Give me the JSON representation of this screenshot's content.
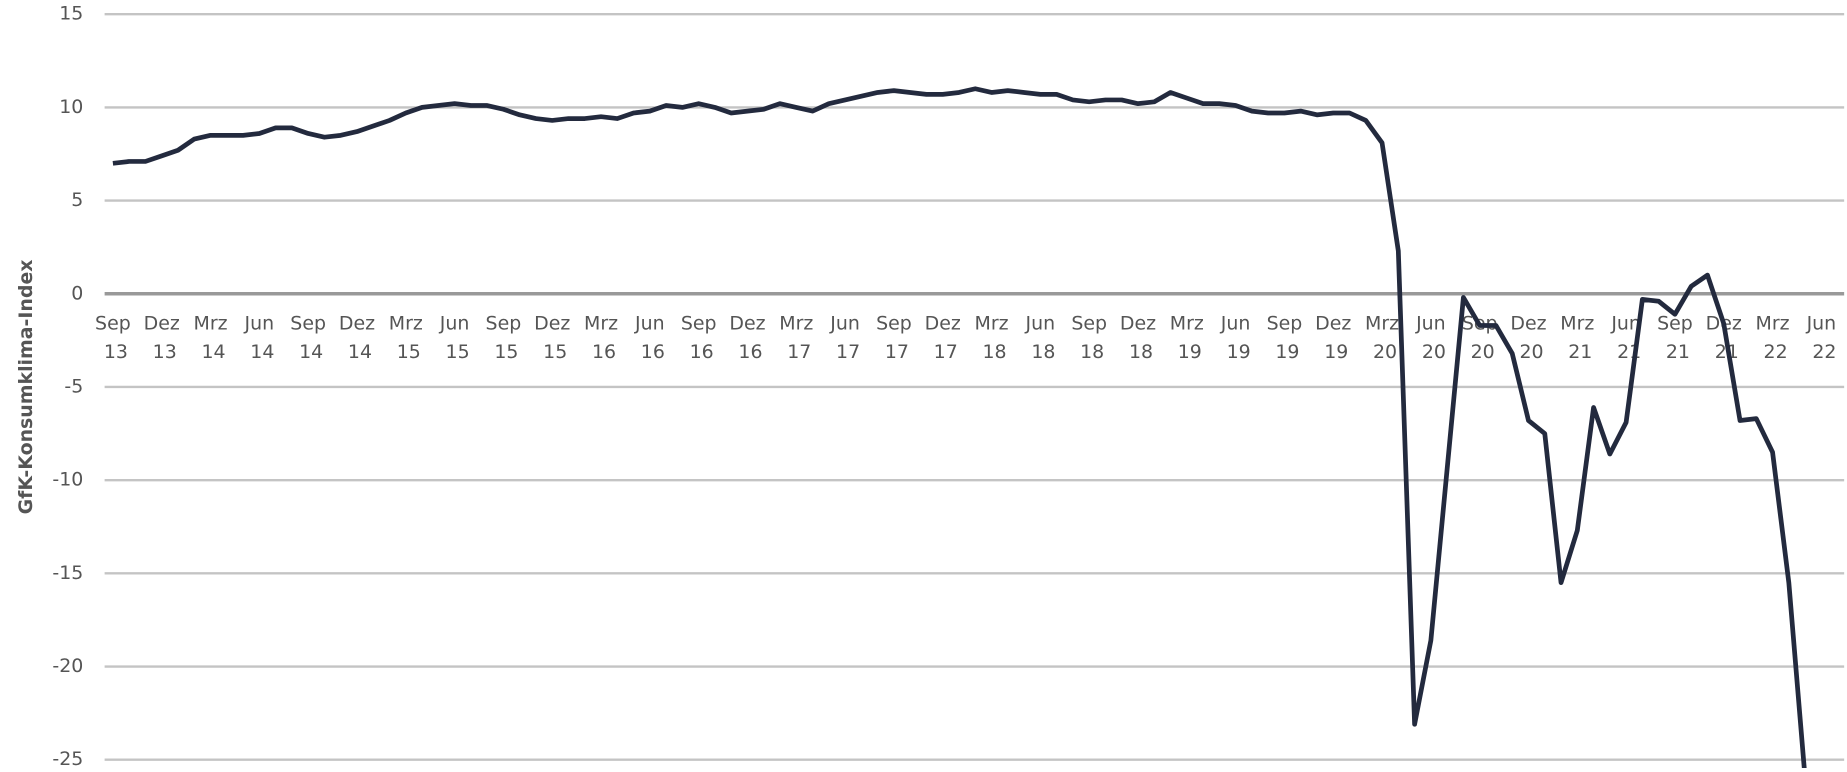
{
  "chart_data": {
    "type": "line",
    "y_label": "GfK-Konsumklima-Index",
    "categories": [
      "Sep 13",
      null,
      null,
      "Dez 13",
      null,
      null,
      "Mrz 14",
      null,
      null,
      "Jun 14",
      null,
      null,
      "Sep 14",
      null,
      null,
      "Dez 14",
      null,
      null,
      "Mrz 15",
      null,
      null,
      "Jun 15",
      null,
      null,
      "Sep 15",
      null,
      null,
      "Dez 15",
      null,
      null,
      "Mrz 16",
      null,
      null,
      "Jun 16",
      null,
      null,
      "Sep 16",
      null,
      null,
      "Dez 16",
      null,
      null,
      "Mrz 17",
      null,
      null,
      "Jun 17",
      null,
      null,
      "Sep 17",
      null,
      null,
      "Dez 17",
      null,
      null,
      "Mrz 18",
      null,
      null,
      "Jun 18",
      null,
      null,
      "Sep 18",
      null,
      null,
      "Dez 18",
      null,
      null,
      "Mrz 19",
      null,
      null,
      "Jun 19",
      null,
      null,
      "Sep 19",
      null,
      null,
      "Dez 19",
      null,
      null,
      "Mrz 20",
      null,
      null,
      "Jun 20",
      null,
      null,
      "Sep 20",
      null,
      null,
      "Dez 20",
      null,
      null,
      "Mrz 21",
      null,
      null,
      "Jun 21",
      null,
      null,
      "Sep 21",
      null,
      null,
      "Dez 21",
      null,
      null,
      "Mrz 22",
      null,
      null,
      "Jun 22"
    ],
    "series": [
      {
        "color": "#232a3e",
        "values": [
          7.0,
          7.1,
          7.1,
          7.4,
          7.7,
          8.3,
          8.5,
          8.5,
          8.5,
          8.6,
          8.9,
          8.9,
          8.6,
          8.4,
          8.5,
          8.7,
          9.0,
          9.3,
          9.7,
          10.0,
          10.1,
          10.2,
          10.1,
          10.1,
          9.9,
          9.6,
          9.4,
          9.3,
          9.4,
          9.4,
          9.5,
          9.4,
          9.7,
          9.8,
          10.1,
          10.0,
          10.2,
          10.0,
          9.7,
          9.8,
          9.9,
          10.2,
          10.0,
          9.8,
          10.2,
          10.4,
          10.6,
          10.8,
          10.9,
          10.8,
          10.7,
          10.7,
          10.8,
          11.0,
          10.8,
          10.9,
          10.8,
          10.7,
          10.7,
          10.4,
          10.3,
          10.4,
          10.4,
          10.2,
          10.3,
          10.8,
          10.5,
          10.2,
          10.2,
          10.1,
          9.8,
          9.7,
          9.7,
          9.8,
          9.6,
          9.7,
          9.7,
          9.3,
          8.1,
          2.3,
          -23.1,
          -18.6,
          -9.4,
          -0.2,
          -1.7,
          -1.7,
          -3.2,
          -6.8,
          -7.5,
          -15.5,
          -12.7,
          -6.1,
          -8.6,
          -6.9,
          -0.3,
          -0.4,
          -1.1,
          0.4,
          1.0,
          -1.6,
          -6.8,
          -6.7,
          -8.5,
          -15.5,
          -26.0,
          null
        ]
      }
    ],
    "ylim": [
      -25,
      15
    ],
    "yticks": [
      15,
      10,
      5,
      0,
      -5,
      -10,
      -15,
      -20,
      -25
    ],
    "grid": true
  }
}
